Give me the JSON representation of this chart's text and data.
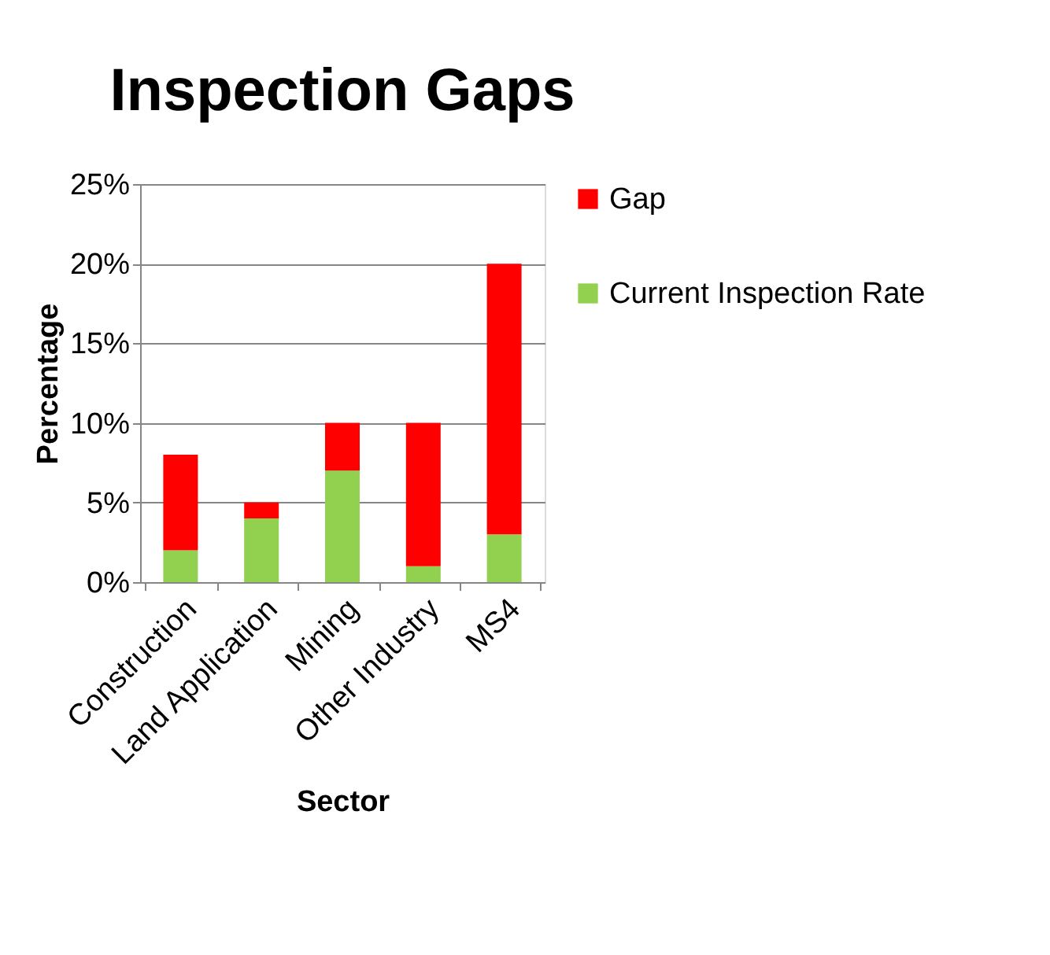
{
  "chart_data": {
    "type": "bar",
    "title": "Inspection Gaps",
    "xlabel": "Sector",
    "ylabel": "Percentage",
    "categories": [
      "Construction",
      "Land Application",
      "Mining",
      "Other Industry",
      "MS4"
    ],
    "stacked": true,
    "series": [
      {
        "name": "Current Inspection Rate",
        "color": "#92d050",
        "values": [
          2,
          4,
          7,
          1,
          3
        ]
      },
      {
        "name": "Gap",
        "color": "#ff0000",
        "values": [
          6,
          1,
          3,
          9,
          17
        ]
      }
    ],
    "ylim": [
      0,
      25
    ],
    "yticks": [
      {
        "value": 0,
        "label": "0%"
      },
      {
        "value": 5,
        "label": "5%"
      },
      {
        "value": 10,
        "label": "10%"
      },
      {
        "value": 15,
        "label": "15%"
      },
      {
        "value": 20,
        "label": "20%"
      },
      {
        "value": 25,
        "label": "25%"
      }
    ],
    "grid": "y",
    "legend": "right"
  }
}
